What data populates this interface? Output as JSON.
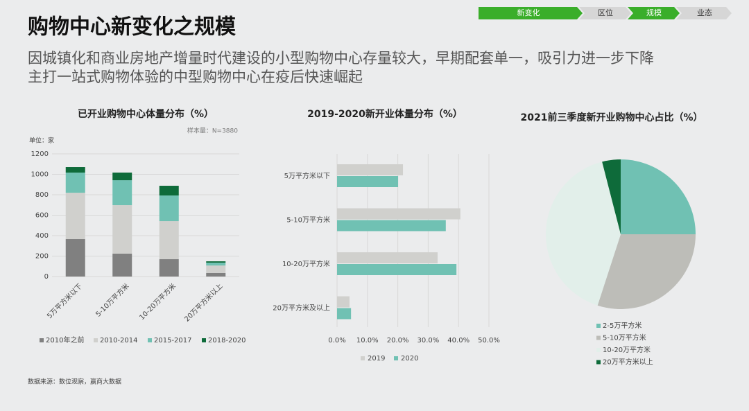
{
  "header": {
    "title": "购物中心新变化之规模",
    "subtitle": [
      "因城镇化和商业房地产增量时代建设的小型购物中心存量较大，早期配套单一，吸引力进一步下降",
      "主打一站式购物体验的中型购物中心在疫后快速崛起"
    ]
  },
  "nav": [
    "新变化",
    "区位",
    "规模",
    "业态"
  ],
  "source": "数据来源：数位观察，赢商大数据",
  "chart_data": [
    {
      "type": "bar",
      "title": "已开业购物中心体量分布（%）",
      "annotations": [
        "样本量：N=3880",
        "单位：家"
      ],
      "categories": [
        "5万平方米以下",
        "5-10万平方米",
        "10-20万平方米",
        "20万平方米以上"
      ],
      "series": [
        {
          "name": "2010年之前",
          "color": "#808080",
          "values": [
            366,
            224,
            170,
            34
          ]
        },
        {
          "name": "2010-2014",
          "color": "#d0d0cd",
          "values": [
            454,
            474,
            372,
            74
          ]
        },
        {
          "name": "2015-2017",
          "color": "#70c1b3",
          "values": [
            197,
            244,
            251,
            28
          ]
        },
        {
          "name": "2018-2020",
          "color": "#0e6b3a",
          "values": [
            54,
            75,
            95,
            13
          ]
        }
      ],
      "ylim": [
        0,
        1200
      ],
      "yticks": [
        0,
        200,
        400,
        600,
        800,
        1000,
        1200
      ],
      "grid": true
    },
    {
      "type": "hbar",
      "title": "2019-2020新开业体量分布（%）",
      "categories": [
        "5万平方米以下",
        "5-10万平方米",
        "10-20万平方米",
        "20万平方米及以上"
      ],
      "series": [
        {
          "name": "2019",
          "color": "#d0d0cd",
          "values": [
            21.7,
            40.6,
            33.1,
            4.1
          ]
        },
        {
          "name": "2020",
          "color": "#70c1b3",
          "values": [
            20.1,
            35.8,
            39.3,
            4.6
          ]
        }
      ],
      "xlim": [
        0,
        50
      ],
      "xticks": [
        {
          "value": 0,
          "label": "0.0%"
        },
        {
          "value": 10,
          "label": "10.0%"
        },
        {
          "value": 20,
          "label": "20.0%"
        },
        {
          "value": 30,
          "label": "30.0%"
        },
        {
          "value": 40,
          "label": "40.0%"
        },
        {
          "value": 50,
          "label": "50.0%"
        }
      ],
      "grid": true
    },
    {
      "type": "pie",
      "title": "2021前三季度新开业购物中心占比（%）",
      "categories": [
        "2-5万平方米",
        "5-10万平方米",
        "10-20万平方米",
        "20万平方米以上"
      ],
      "values": [
        25,
        30,
        41,
        4
      ],
      "colors": [
        "#70c1b3",
        "#bdbdb8",
        "#e2efea",
        "#0e6b3a"
      ]
    }
  ]
}
